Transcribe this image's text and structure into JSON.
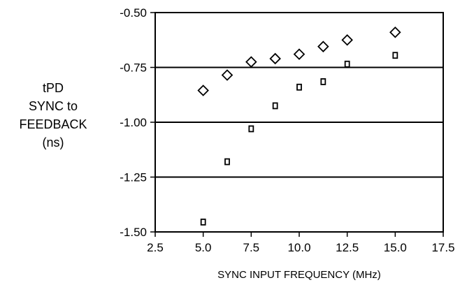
{
  "chart_data": {
    "type": "scatter",
    "title": "",
    "xlabel": "SYNC INPUT FREQUENCY (MHz)",
    "ylabel_lines": [
      "tPD",
      "SYNC to",
      "FEEDBACK",
      "(ns)"
    ],
    "xlim": [
      2.5,
      17.5
    ],
    "ylim": [
      -1.5,
      -0.5
    ],
    "x_ticks": [
      "2.5",
      "5.0",
      "7.5",
      "10.0",
      "12.5",
      "15.0",
      "17.5"
    ],
    "y_ticks": [
      "-0.50",
      "-0.75",
      "-1.00",
      "-1.25",
      "-1.50"
    ],
    "grid": "horizontal",
    "series": [
      {
        "marker": "diamond",
        "x": [
          5.0,
          6.25,
          7.5,
          8.75,
          10.0,
          11.25,
          12.5,
          15.0
        ],
        "y": [
          -0.855,
          -0.785,
          -0.725,
          -0.71,
          -0.69,
          -0.655,
          -0.625,
          -0.59
        ]
      },
      {
        "marker": "square",
        "x": [
          5.0,
          6.25,
          7.5,
          8.75,
          10.0,
          11.25,
          12.5,
          15.0
        ],
        "y": [
          -1.455,
          -1.18,
          -1.03,
          -0.925,
          -0.84,
          -0.815,
          -0.735,
          -0.695
        ]
      }
    ]
  }
}
